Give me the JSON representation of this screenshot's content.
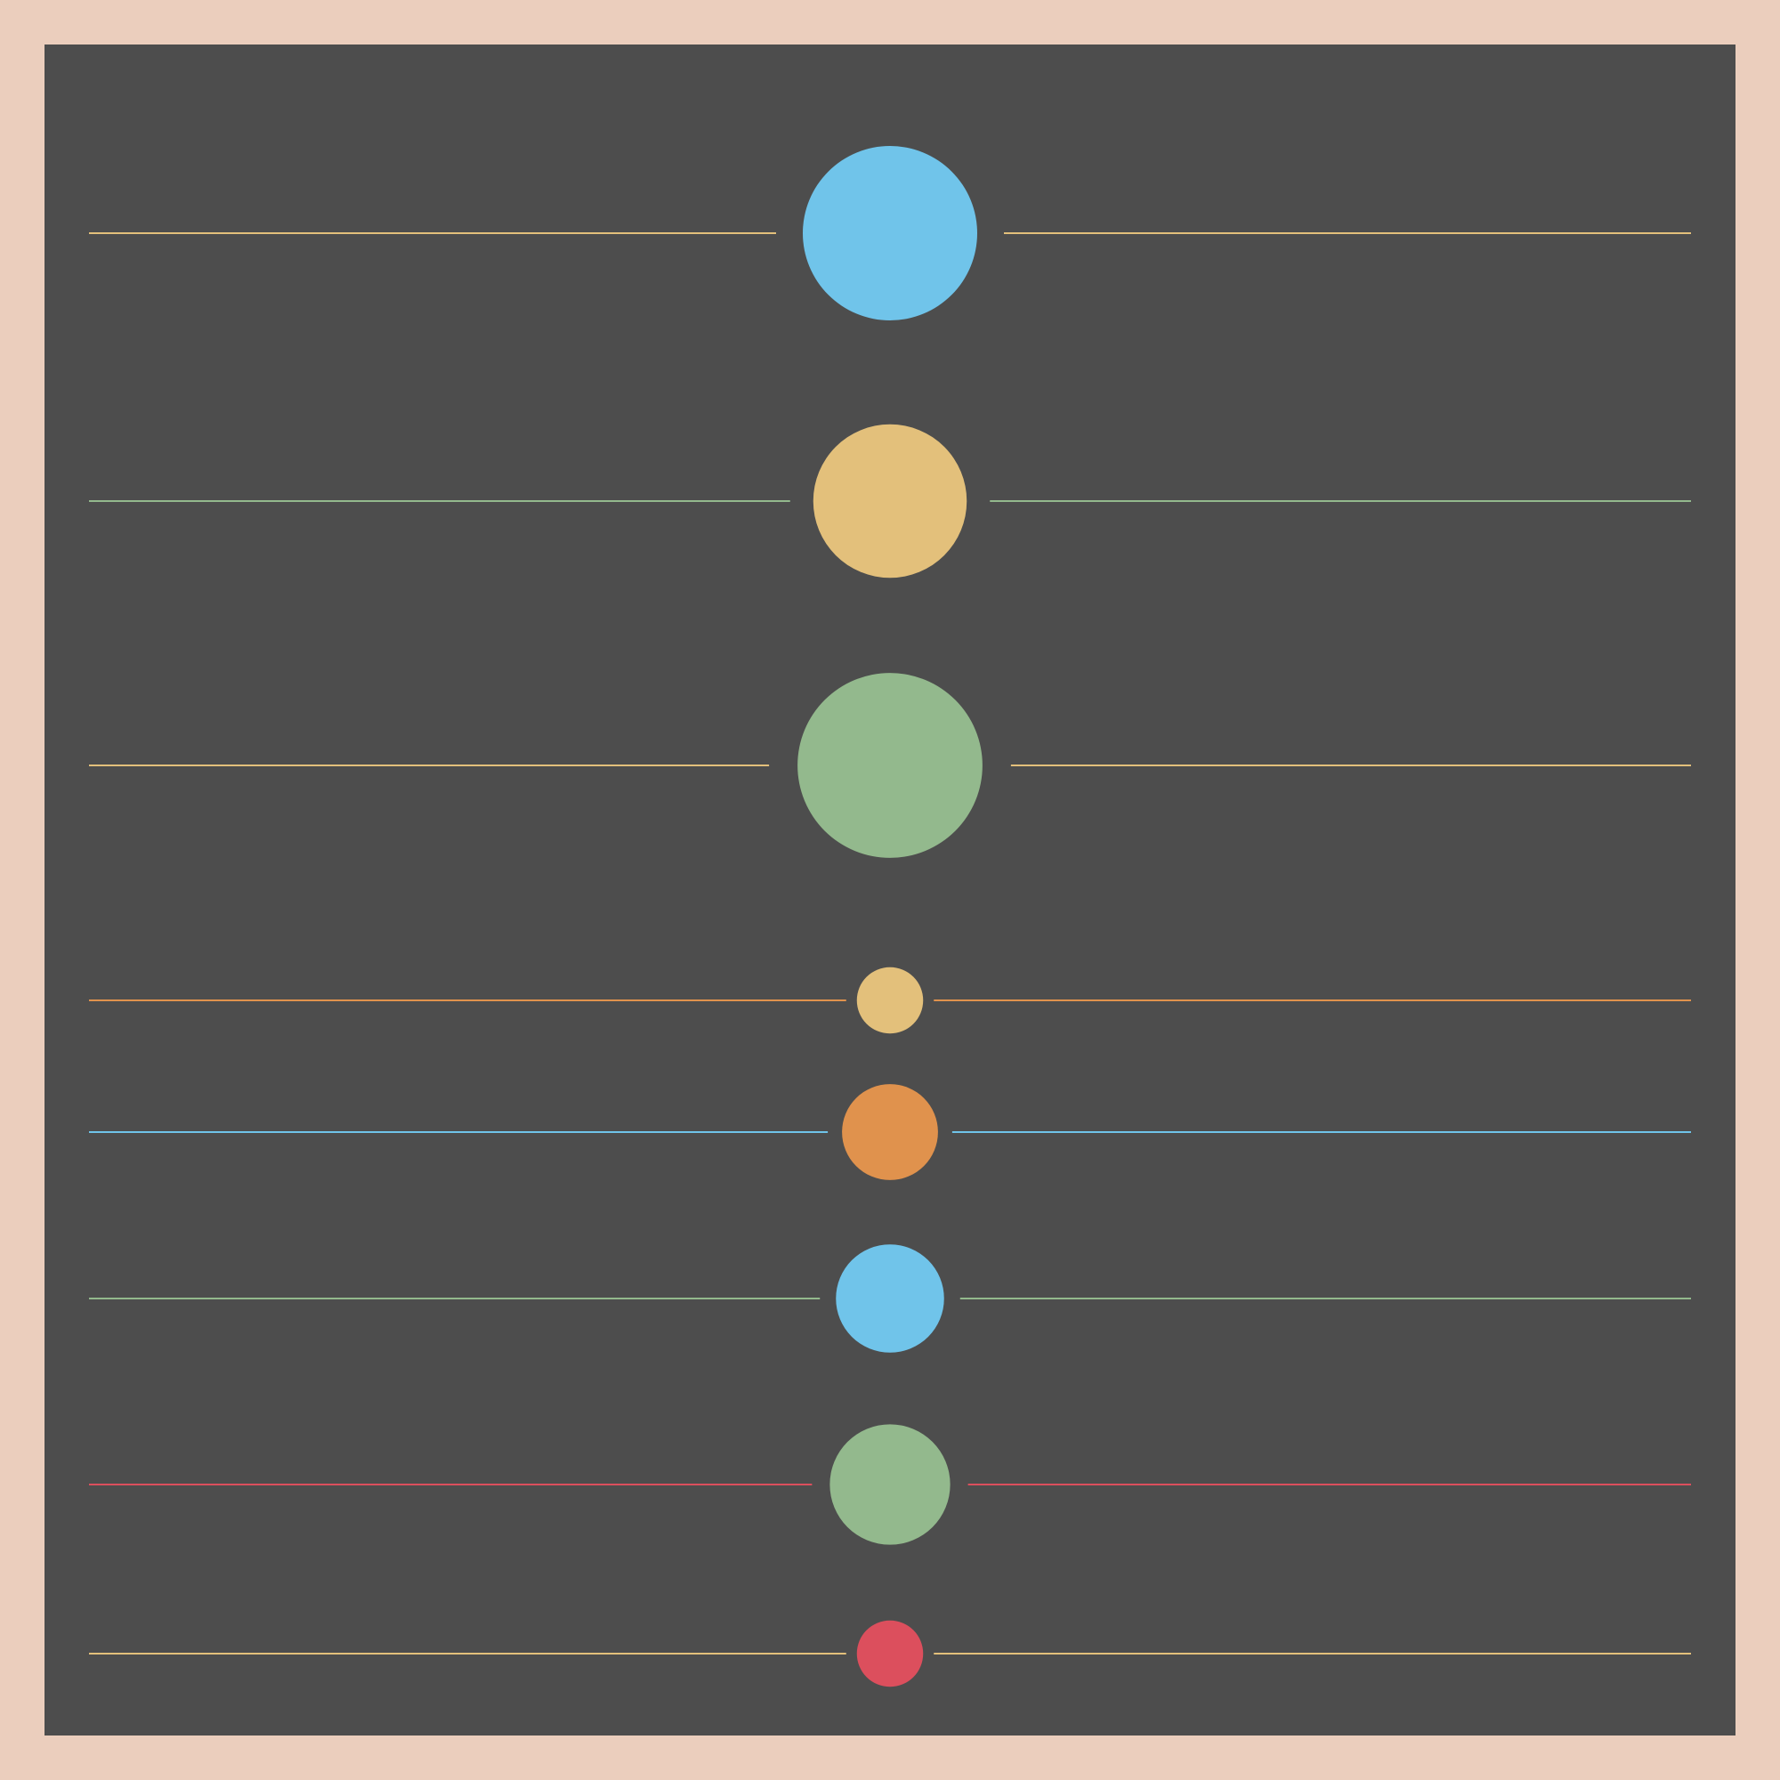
{
  "colors": {
    "frame": "#ebcebd",
    "panel": "#4d4d4d",
    "blue": "#70c4ea",
    "gold": "#e3c07b",
    "green": "#93b98d",
    "orange": "#e0924d",
    "red": "#dc4f5d"
  },
  "rows": [
    {
      "dot_color": "blue",
      "line_color": "gold",
      "relative_size": 1.0
    },
    {
      "dot_color": "gold",
      "line_color": "green",
      "relative_size": 0.88
    },
    {
      "dot_color": "green",
      "line_color": "gold",
      "relative_size": 1.06
    },
    {
      "dot_color": "gold",
      "line_color": "orange",
      "relative_size": 0.38
    },
    {
      "dot_color": "orange",
      "line_color": "blue",
      "relative_size": 0.55
    },
    {
      "dot_color": "blue",
      "line_color": "green",
      "relative_size": 0.62
    },
    {
      "dot_color": "green",
      "line_color": "red",
      "relative_size": 0.69
    },
    {
      "dot_color": "red",
      "line_color": "gold",
      "relative_size": 0.38
    }
  ]
}
